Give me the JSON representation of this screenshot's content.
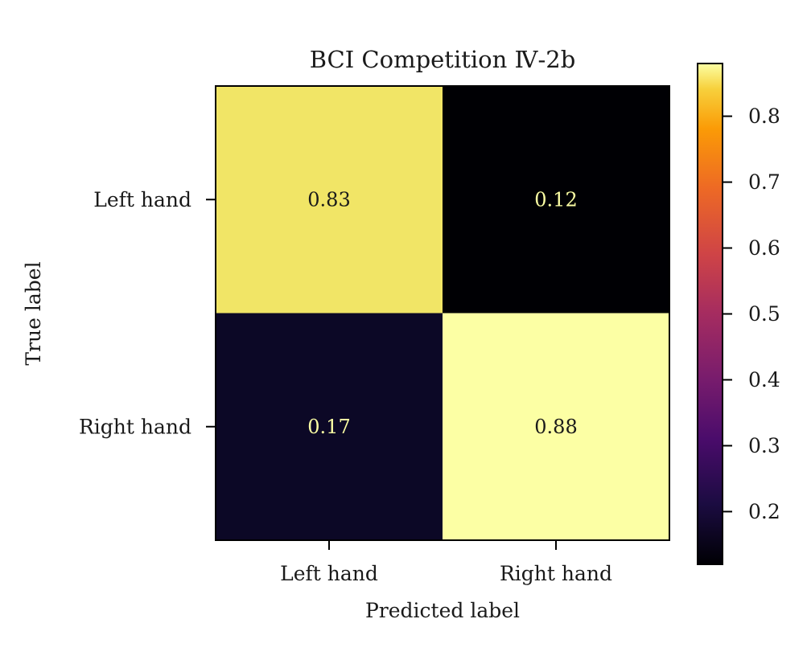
{
  "chart_data": {
    "type": "heatmap",
    "title": "BCI Competition Ⅳ-2b",
    "xlabel": "Predicted label",
    "ylabel": "True label",
    "x_categories": [
      "Left hand",
      "Right hand"
    ],
    "y_categories": [
      "Left hand",
      "Right hand"
    ],
    "values": [
      [
        0.83,
        0.12
      ],
      [
        0.17,
        0.88
      ]
    ],
    "value_labels": [
      [
        "0.83",
        "0.12"
      ],
      [
        "0.17",
        "0.88"
      ]
    ],
    "colormap": "inferno",
    "colorbar": {
      "range": [
        0.12,
        0.88
      ],
      "ticks": [
        0.2,
        0.3,
        0.4,
        0.5,
        0.6,
        0.7,
        0.8
      ],
      "tick_labels": [
        "0.2",
        "0.3",
        "0.4",
        "0.5",
        "0.6",
        "0.7",
        "0.8"
      ]
    },
    "cell_colors": [
      [
        "#f1e566",
        "#000004"
      ],
      [
        "#0c0826",
        "#fcffa4"
      ]
    ],
    "text_colors": [
      [
        "#1a1a1a",
        "#fcffa4"
      ],
      [
        "#fcffa4",
        "#1a1a1a"
      ]
    ],
    "grid": false
  }
}
